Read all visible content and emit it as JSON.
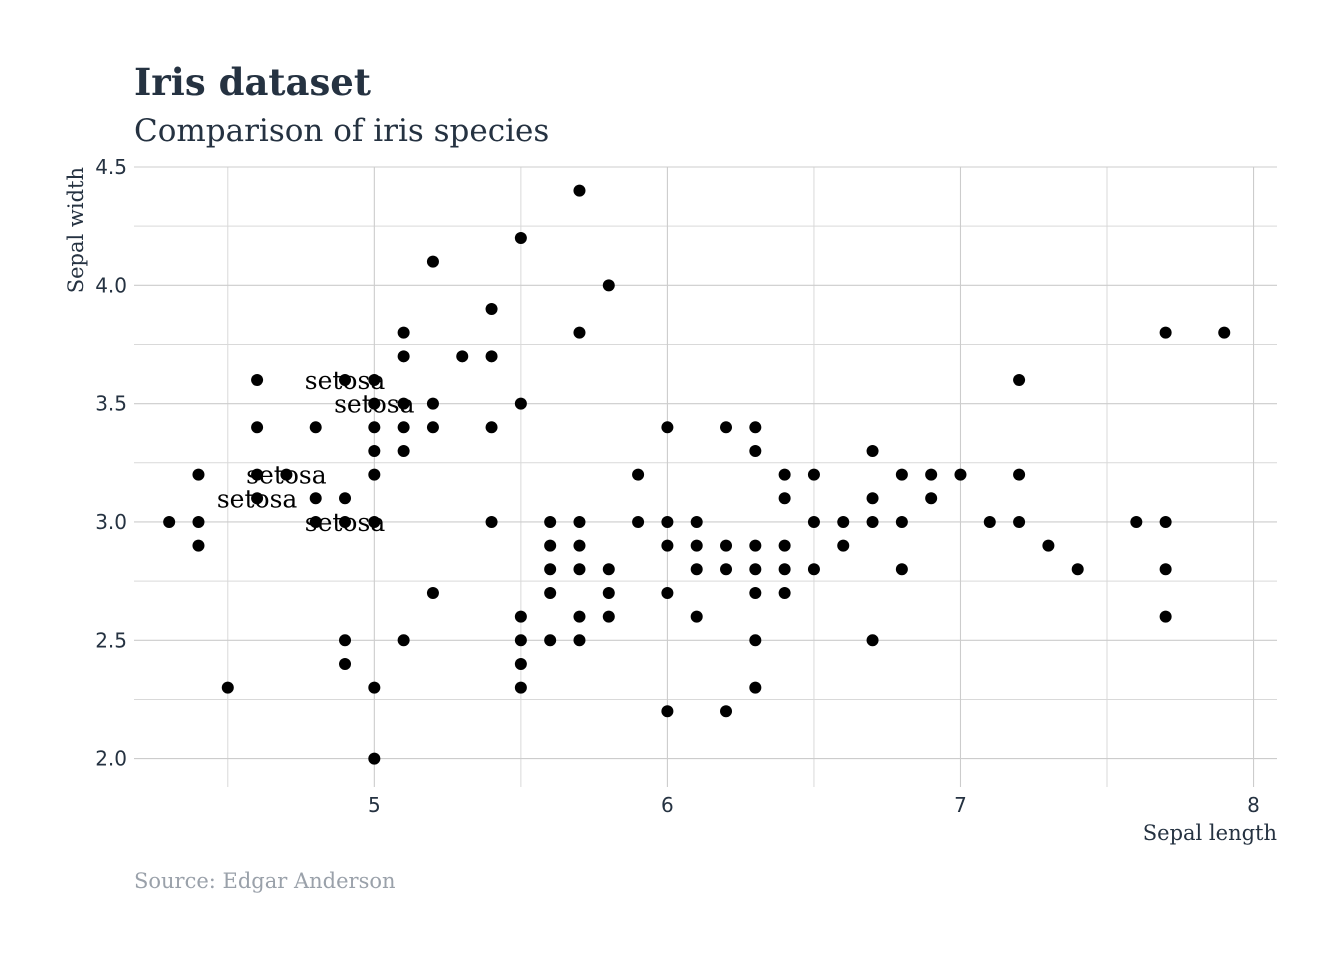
{
  "chart_data": {
    "type": "scatter",
    "title": "Iris dataset",
    "subtitle": "Comparison of iris species",
    "xlabel": "Sepal length",
    "ylabel": "Sepal width",
    "caption": "Source: Edgar Anderson",
    "xlim": [
      4.18,
      8.08
    ],
    "ylim": [
      1.88,
      4.5
    ],
    "x_ticks": [
      5,
      6,
      7,
      8
    ],
    "x_tick_labels": [
      "5",
      "6",
      "7",
      "8"
    ],
    "x_minor_ticks": [
      4.5,
      5.5,
      6.5,
      7.5
    ],
    "y_ticks": [
      2.0,
      2.5,
      3.0,
      3.5,
      4.0,
      4.5
    ],
    "y_tick_labels": [
      "2.0",
      "2.5",
      "3.0",
      "3.5",
      "4.0",
      "4.5"
    ],
    "y_minor_ticks": [
      2.25,
      2.75,
      3.25,
      3.75,
      4.25
    ],
    "grid": true,
    "point_color": "#000000",
    "annotations": [
      {
        "x": 4.9,
        "y": 3.6,
        "text": "setosa"
      },
      {
        "x": 5.0,
        "y": 3.5,
        "text": "setosa"
      },
      {
        "x": 4.7,
        "y": 3.2,
        "text": "setosa"
      },
      {
        "x": 4.6,
        "y": 3.1,
        "text": "setosa"
      },
      {
        "x": 4.9,
        "y": 3.0,
        "text": "setosa"
      }
    ],
    "series": [
      {
        "points": [
          [
            4.3,
            3.0
          ],
          [
            4.4,
            3.2
          ],
          [
            4.4,
            3.0
          ],
          [
            4.4,
            2.9
          ],
          [
            4.5,
            2.3
          ],
          [
            4.6,
            3.6
          ],
          [
            4.6,
            3.4
          ],
          [
            4.6,
            3.2
          ],
          [
            4.6,
            3.1
          ],
          [
            4.7,
            3.2
          ],
          [
            4.8,
            3.4
          ],
          [
            4.8,
            3.1
          ],
          [
            4.8,
            3.0
          ],
          [
            4.9,
            3.6
          ],
          [
            4.9,
            3.1
          ],
          [
            4.9,
            3.0
          ],
          [
            4.9,
            2.5
          ],
          [
            4.9,
            2.4
          ],
          [
            5.0,
            3.6
          ],
          [
            5.0,
            3.5
          ],
          [
            5.0,
            3.4
          ],
          [
            5.0,
            3.3
          ],
          [
            5.0,
            3.2
          ],
          [
            5.0,
            3.0
          ],
          [
            5.0,
            2.3
          ],
          [
            5.0,
            2.0
          ],
          [
            5.1,
            3.8
          ],
          [
            5.1,
            3.7
          ],
          [
            5.1,
            3.5
          ],
          [
            5.1,
            3.4
          ],
          [
            5.1,
            3.3
          ],
          [
            5.1,
            2.5
          ],
          [
            5.2,
            4.1
          ],
          [
            5.2,
            3.5
          ],
          [
            5.2,
            3.4
          ],
          [
            5.2,
            2.7
          ],
          [
            5.3,
            3.7
          ],
          [
            5.4,
            3.9
          ],
          [
            5.4,
            3.7
          ],
          [
            5.4,
            3.4
          ],
          [
            5.4,
            3.0
          ],
          [
            5.5,
            4.2
          ],
          [
            5.5,
            3.5
          ],
          [
            5.5,
            2.6
          ],
          [
            5.5,
            2.5
          ],
          [
            5.5,
            2.4
          ],
          [
            5.5,
            2.3
          ],
          [
            5.6,
            3.0
          ],
          [
            5.6,
            2.9
          ],
          [
            5.6,
            2.8
          ],
          [
            5.6,
            2.7
          ],
          [
            5.6,
            2.5
          ],
          [
            5.7,
            4.4
          ],
          [
            5.7,
            3.8
          ],
          [
            5.7,
            3.0
          ],
          [
            5.7,
            2.9
          ],
          [
            5.7,
            2.8
          ],
          [
            5.7,
            2.6
          ],
          [
            5.7,
            2.5
          ],
          [
            5.8,
            4.0
          ],
          [
            5.8,
            2.8
          ],
          [
            5.8,
            2.7
          ],
          [
            5.8,
            2.6
          ],
          [
            5.9,
            3.2
          ],
          [
            5.9,
            3.0
          ],
          [
            6.0,
            3.4
          ],
          [
            6.0,
            3.0
          ],
          [
            6.0,
            2.9
          ],
          [
            6.0,
            2.7
          ],
          [
            6.0,
            2.2
          ],
          [
            6.1,
            3.0
          ],
          [
            6.1,
            2.9
          ],
          [
            6.1,
            2.8
          ],
          [
            6.1,
            2.6
          ],
          [
            6.2,
            3.4
          ],
          [
            6.2,
            2.9
          ],
          [
            6.2,
            2.8
          ],
          [
            6.2,
            2.2
          ],
          [
            6.3,
            3.4
          ],
          [
            6.3,
            3.3
          ],
          [
            6.3,
            2.9
          ],
          [
            6.3,
            2.8
          ],
          [
            6.3,
            2.7
          ],
          [
            6.3,
            2.5
          ],
          [
            6.3,
            2.3
          ],
          [
            6.4,
            3.2
          ],
          [
            6.4,
            3.1
          ],
          [
            6.4,
            2.9
          ],
          [
            6.4,
            2.8
          ],
          [
            6.4,
            2.7
          ],
          [
            6.5,
            3.2
          ],
          [
            6.5,
            3.0
          ],
          [
            6.5,
            2.8
          ],
          [
            6.6,
            3.0
          ],
          [
            6.6,
            2.9
          ],
          [
            6.7,
            3.3
          ],
          [
            6.7,
            3.1
          ],
          [
            6.7,
            3.0
          ],
          [
            6.7,
            2.5
          ],
          [
            6.8,
            3.2
          ],
          [
            6.8,
            3.0
          ],
          [
            6.8,
            2.8
          ],
          [
            6.9,
            3.2
          ],
          [
            6.9,
            3.1
          ],
          [
            7.0,
            3.2
          ],
          [
            7.1,
            3.0
          ],
          [
            7.2,
            3.6
          ],
          [
            7.2,
            3.2
          ],
          [
            7.2,
            3.0
          ],
          [
            7.3,
            2.9
          ],
          [
            7.4,
            2.8
          ],
          [
            7.6,
            3.0
          ],
          [
            7.7,
            3.8
          ],
          [
            7.7,
            3.0
          ],
          [
            7.7,
            2.8
          ],
          [
            7.7,
            2.6
          ],
          [
            7.9,
            3.8
          ]
        ]
      }
    ]
  }
}
